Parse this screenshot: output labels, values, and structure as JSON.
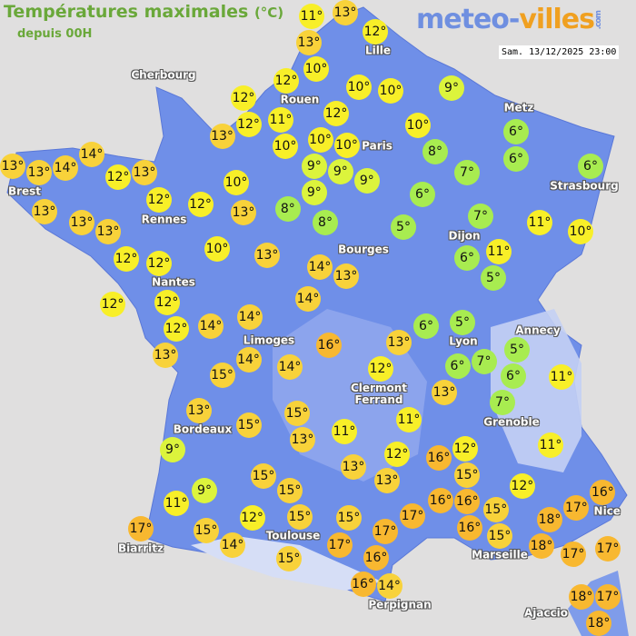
{
  "header": {
    "title": "Températures maximales",
    "unit": "(°C)",
    "subtitle": "depuis 00H"
  },
  "logo": {
    "part1": "meteo-",
    "part2": "villes",
    "suffix": ".com"
  },
  "timestamp": "Sam. 13/12/2025 23:00",
  "colors": {
    "sea": "#e0dfdf",
    "land": "#6f8fe8",
    "highland": "#a6b9f0",
    "cold": "#a8ec50",
    "cool": "#dcf43c",
    "mild": "#f8ef28",
    "warm": "#f8d23a",
    "hot": "#f8b830"
  },
  "cities": [
    "Cherbourg",
    "Lille",
    "Rouen",
    "Paris",
    "Metz",
    "Strasbourg",
    "Brest",
    "Rennes",
    "Dijon",
    "Nantes",
    "Bourges",
    "Limoges",
    "Annecy",
    "Lyon",
    "Clermont\nFerrand",
    "Grenoble",
    "Bordeaux",
    "Nice",
    "Toulouse",
    "Biarritz",
    "Marseille",
    "Perpignan",
    "Ajaccio"
  ],
  "temperatures": [
    11,
    13,
    13,
    12,
    10,
    12,
    10,
    10,
    9,
    12,
    12,
    11,
    12,
    13,
    10,
    10,
    10,
    10,
    8,
    6,
    6,
    9,
    9,
    9,
    7,
    6,
    14,
    13,
    14,
    13,
    12,
    13,
    10,
    6,
    12,
    12,
    8,
    9,
    8,
    13,
    13,
    13,
    13,
    5,
    7,
    11,
    10,
    12,
    10,
    13,
    12,
    6,
    11,
    5,
    14,
    13,
    12,
    12,
    14,
    12,
    14,
    14,
    6,
    5,
    13,
    16,
    13,
    7,
    5,
    6,
    6,
    11,
    14,
    14,
    15,
    12,
    13,
    7,
    13,
    15,
    15,
    13,
    11,
    11,
    9,
    11,
    15,
    12,
    16,
    12,
    13,
    13,
    15,
    12,
    16,
    9,
    15,
    16,
    16,
    17,
    11,
    17,
    12,
    15,
    15,
    15,
    17,
    15,
    16,
    18,
    17,
    15,
    17,
    18,
    14,
    15,
    17,
    17,
    16,
    16,
    14,
    18,
    17,
    18
  ],
  "temperature_unit": "°"
}
